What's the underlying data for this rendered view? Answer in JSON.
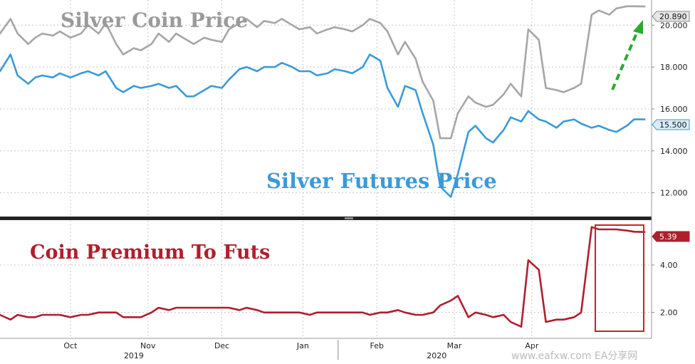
{
  "colors": {
    "coin": "#a6a6a6",
    "futures": "#3a9ad9",
    "premium": "#b01e2e",
    "arrow": "#2ea82e",
    "box": "#cc2222",
    "grid": "#c8c8c8"
  },
  "labels": {
    "coin_title": "Silver Coin Price",
    "futures_title": "Silver Futures Price",
    "premium_title": "Coin Premium To Futs",
    "coin_last": "20.890",
    "futures_last": "15.500",
    "premium_last": "5.39",
    "watermark": "www.eafxw.com  EA分享网"
  },
  "chart_data": [
    {
      "type": "line",
      "panel": "top",
      "ylim": [
        11,
        21.2
      ],
      "yticks": [
        "12.000",
        "14.000",
        "16.000",
        "18.000",
        "20.000"
      ],
      "x_range": [
        0,
        185
      ],
      "x": [
        0,
        3,
        5,
        8,
        10,
        12,
        15,
        17,
        20,
        23,
        25,
        28,
        30,
        33,
        35,
        38,
        40,
        43,
        45,
        48,
        50,
        53,
        55,
        58,
        60,
        63,
        65,
        68,
        70,
        73,
        75,
        78,
        80,
        83,
        85,
        88,
        90,
        93,
        95,
        98,
        100,
        103,
        105,
        108,
        110,
        113,
        115,
        118,
        120,
        123,
        125,
        128,
        130,
        133,
        135,
        138,
        140,
        143,
        145,
        148,
        150,
        153,
        155,
        158,
        160,
        163,
        165,
        168,
        170,
        173,
        175,
        178,
        180,
        183
      ],
      "series": [
        {
          "name": "Silver Coin Price",
          "values": [
            19.6,
            20.3,
            19.6,
            19.1,
            19.4,
            19.6,
            19.5,
            19.7,
            19.4,
            19.6,
            20.0,
            19.6,
            20.1,
            19.1,
            18.6,
            18.9,
            18.8,
            19.1,
            19.6,
            19.2,
            19.6,
            19.3,
            19.1,
            19.4,
            19.3,
            19.2,
            19.8,
            20.1,
            20.3,
            19.9,
            20.2,
            20.1,
            20.3,
            20.0,
            19.8,
            19.9,
            19.6,
            19.8,
            19.9,
            19.8,
            19.7,
            20.0,
            20.3,
            20.1,
            19.7,
            18.6,
            19.2,
            18.4,
            17.3,
            16.4,
            14.6,
            14.6,
            15.8,
            16.6,
            16.3,
            16.1,
            16.2,
            16.7,
            17.2,
            16.6,
            19.8,
            19.3,
            17.0,
            16.9,
            16.8,
            17.0,
            17.2,
            20.5,
            20.7,
            20.5,
            20.8,
            20.9,
            20.9,
            20.89
          ]
        },
        {
          "name": "Silver Futures Price",
          "values": [
            17.8,
            18.6,
            17.6,
            17.2,
            17.5,
            17.6,
            17.5,
            17.7,
            17.5,
            17.7,
            17.8,
            17.6,
            17.8,
            17.0,
            16.8,
            17.1,
            17.0,
            17.1,
            17.2,
            17.0,
            17.1,
            16.6,
            16.6,
            16.9,
            17.1,
            17.0,
            17.4,
            17.9,
            18.0,
            17.8,
            18.0,
            18.0,
            18.2,
            18.0,
            17.8,
            17.8,
            17.6,
            17.7,
            17.9,
            17.8,
            17.7,
            18.0,
            18.6,
            18.3,
            17.0,
            16.1,
            17.1,
            16.9,
            15.8,
            14.3,
            12.3,
            11.8,
            12.9,
            14.9,
            15.2,
            14.6,
            14.4,
            15.0,
            15.6,
            15.4,
            15.9,
            15.5,
            15.4,
            15.1,
            15.4,
            15.5,
            15.3,
            15.1,
            15.2,
            15.0,
            14.9,
            15.2,
            15.5,
            15.5
          ]
        }
      ]
    },
    {
      "type": "line",
      "panel": "bottom",
      "ylim": [
        1.0,
        5.8
      ],
      "yticks": [
        "2.00",
        "4.00"
      ],
      "x_range": [
        0,
        185
      ],
      "x": [
        0,
        3,
        5,
        8,
        10,
        12,
        15,
        17,
        20,
        23,
        25,
        28,
        30,
        33,
        35,
        38,
        40,
        43,
        45,
        48,
        50,
        53,
        55,
        58,
        60,
        63,
        65,
        68,
        70,
        73,
        75,
        78,
        80,
        83,
        85,
        88,
        90,
        93,
        95,
        98,
        100,
        103,
        105,
        108,
        110,
        113,
        115,
        118,
        120,
        123,
        125,
        128,
        130,
        133,
        135,
        138,
        140,
        143,
        145,
        148,
        150,
        153,
        155,
        158,
        160,
        163,
        165,
        168,
        170,
        173,
        175,
        178,
        180,
        183
      ],
      "series": [
        {
          "name": "Coin Premium To Futs",
          "values": [
            1.9,
            1.7,
            1.9,
            1.8,
            1.8,
            1.9,
            1.9,
            1.9,
            1.8,
            1.9,
            1.9,
            2.0,
            2.0,
            2.0,
            1.8,
            1.8,
            1.8,
            2.0,
            2.2,
            2.1,
            2.2,
            2.2,
            2.2,
            2.2,
            2.2,
            2.2,
            2.2,
            2.1,
            2.2,
            2.1,
            2.0,
            2.0,
            2.0,
            2.0,
            2.0,
            1.9,
            2.0,
            2.0,
            2.0,
            2.0,
            2.0,
            2.0,
            1.9,
            2.0,
            2.0,
            2.1,
            2.0,
            1.9,
            1.9,
            2.0,
            2.3,
            2.5,
            2.7,
            1.8,
            2.0,
            1.9,
            1.8,
            1.9,
            1.6,
            1.4,
            4.2,
            3.8,
            1.6,
            1.7,
            1.7,
            1.8,
            2.0,
            5.6,
            5.5,
            5.5,
            5.5,
            5.45,
            5.4,
            5.39
          ]
        }
      ]
    }
  ],
  "x_axis": {
    "months": [
      {
        "label": "Oct",
        "x": 20
      },
      {
        "label": "Nov",
        "x": 42
      },
      {
        "label": "Dec",
        "x": 63
      },
      {
        "label": "Jan",
        "x": 86
      },
      {
        "label": "Feb",
        "x": 107
      },
      {
        "label": "Mar",
        "x": 129
      },
      {
        "label": "Apr",
        "x": 151
      }
    ],
    "years": [
      {
        "label": "2019",
        "x": 38
      },
      {
        "label": "2020",
        "x": 124
      }
    ]
  }
}
